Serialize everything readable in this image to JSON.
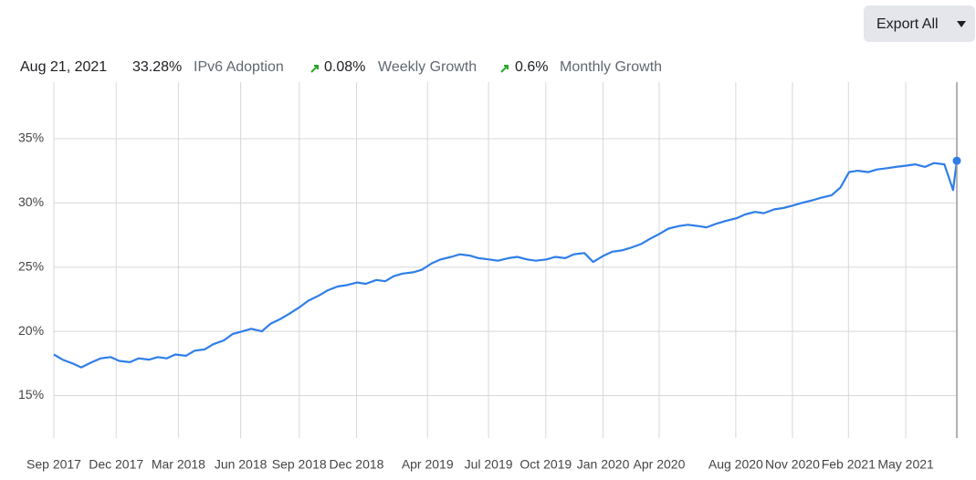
{
  "toolbar": {
    "button": "Export All"
  },
  "summary": {
    "date": "Aug 21, 2021",
    "adoption_value": "33.28%",
    "adoption_label": "IPv6 Adoption",
    "weekly_value": "0.08%",
    "weekly_label": "Weekly Growth",
    "monthly_value": "0.6%",
    "monthly_label": "Monthly Growth"
  },
  "chart_data": {
    "type": "line",
    "color": "#2f7ee8",
    "grid": true,
    "xlim": [
      "2017-09-01",
      "2021-08-21"
    ],
    "xticks": [
      {
        "value": "2017-09-01",
        "label": "Sep 2017"
      },
      {
        "value": "2017-12-10",
        "label": "Dec 2017"
      },
      {
        "value": "2018-03-20",
        "label": "Mar 2018"
      },
      {
        "value": "2018-06-28",
        "label": "Jun 2018"
      },
      {
        "value": "2018-09-30",
        "label": "Sep 2018"
      },
      {
        "value": "2018-12-31",
        "label": "Dec 2018"
      },
      {
        "value": "2019-04-24",
        "label": "Apr 2019"
      },
      {
        "value": "2019-07-31",
        "label": "Jul 2019"
      },
      {
        "value": "2019-10-31",
        "label": "Oct 2019"
      },
      {
        "value": "2020-01-31",
        "label": "Jan 2020"
      },
      {
        "value": "2020-04-30",
        "label": "Apr 2020"
      },
      {
        "value": "2020-08-31",
        "label": "Aug 2020"
      },
      {
        "value": "2020-11-30",
        "label": "Nov 2020"
      },
      {
        "value": "2021-02-28",
        "label": "Feb 2021"
      },
      {
        "value": "2021-05-31",
        "label": "May 2021"
      }
    ],
    "ylim": [
      11.7,
      39.4
    ],
    "yticks": [
      {
        "value": 15,
        "label": "15%"
      },
      {
        "value": 20,
        "label": "20%"
      },
      {
        "value": 25,
        "label": "25%"
      },
      {
        "value": 30,
        "label": "30%"
      },
      {
        "value": 35,
        "label": "35%"
      }
    ],
    "x": [
      "2017-09-01",
      "2017-09-15",
      "2017-10-01",
      "2017-10-15",
      "2017-11-01",
      "2017-11-15",
      "2017-12-01",
      "2017-12-15",
      "2018-01-01",
      "2018-01-15",
      "2018-02-01",
      "2018-02-15",
      "2018-03-01",
      "2018-03-15",
      "2018-04-01",
      "2018-04-15",
      "2018-05-01",
      "2018-05-15",
      "2018-06-01",
      "2018-06-15",
      "2018-07-01",
      "2018-07-15",
      "2018-08-01",
      "2018-08-15",
      "2018-09-01",
      "2018-09-15",
      "2018-10-01",
      "2018-10-15",
      "2018-11-01",
      "2018-11-15",
      "2018-12-01",
      "2018-12-15",
      "2019-01-01",
      "2019-01-15",
      "2019-02-01",
      "2019-02-15",
      "2019-03-01",
      "2019-03-15",
      "2019-04-01",
      "2019-04-15",
      "2019-05-01",
      "2019-05-15",
      "2019-06-01",
      "2019-06-15",
      "2019-07-01",
      "2019-07-15",
      "2019-08-01",
      "2019-08-15",
      "2019-09-01",
      "2019-09-15",
      "2019-10-01",
      "2019-10-15",
      "2019-11-01",
      "2019-11-15",
      "2019-12-01",
      "2019-12-15",
      "2020-01-01",
      "2020-01-15",
      "2020-02-01",
      "2020-02-15",
      "2020-03-01",
      "2020-03-15",
      "2020-04-01",
      "2020-04-15",
      "2020-05-01",
      "2020-05-15",
      "2020-06-01",
      "2020-06-15",
      "2020-07-01",
      "2020-07-15",
      "2020-08-01",
      "2020-08-15",
      "2020-09-01",
      "2020-09-15",
      "2020-10-01",
      "2020-10-15",
      "2020-11-01",
      "2020-11-15",
      "2020-12-01",
      "2020-12-15",
      "2021-01-01",
      "2021-01-15",
      "2021-02-01",
      "2021-02-15",
      "2021-03-01",
      "2021-03-15",
      "2021-04-01",
      "2021-04-15",
      "2021-05-01",
      "2021-05-15",
      "2021-06-01",
      "2021-06-15",
      "2021-07-01",
      "2021-07-15",
      "2021-08-01",
      "2021-08-15",
      "2021-08-21"
    ],
    "values": [
      18.2,
      17.8,
      17.5,
      17.2,
      17.6,
      17.9,
      18.0,
      17.7,
      17.6,
      17.9,
      17.8,
      18.0,
      17.9,
      18.2,
      18.1,
      18.5,
      18.6,
      19.0,
      19.3,
      19.8,
      20.0,
      20.2,
      20.0,
      20.6,
      21.0,
      21.4,
      21.9,
      22.4,
      22.8,
      23.2,
      23.5,
      23.6,
      23.8,
      23.7,
      24.0,
      23.9,
      24.3,
      24.5,
      24.6,
      24.8,
      25.3,
      25.6,
      25.8,
      26.0,
      25.9,
      25.7,
      25.6,
      25.5,
      25.7,
      25.8,
      25.6,
      25.5,
      25.6,
      25.8,
      25.7,
      26.0,
      26.1,
      25.4,
      25.9,
      26.2,
      26.3,
      26.5,
      26.8,
      27.2,
      27.6,
      28.0,
      28.2,
      28.3,
      28.2,
      28.1,
      28.4,
      28.6,
      28.8,
      29.1,
      29.3,
      29.2,
      29.5,
      29.6,
      29.8,
      30.0,
      30.2,
      30.4,
      30.6,
      31.2,
      32.4,
      32.5,
      32.4,
      32.6,
      32.7,
      32.8,
      32.9,
      33.0,
      32.8,
      33.1,
      33.0,
      31.0,
      33.28
    ]
  }
}
